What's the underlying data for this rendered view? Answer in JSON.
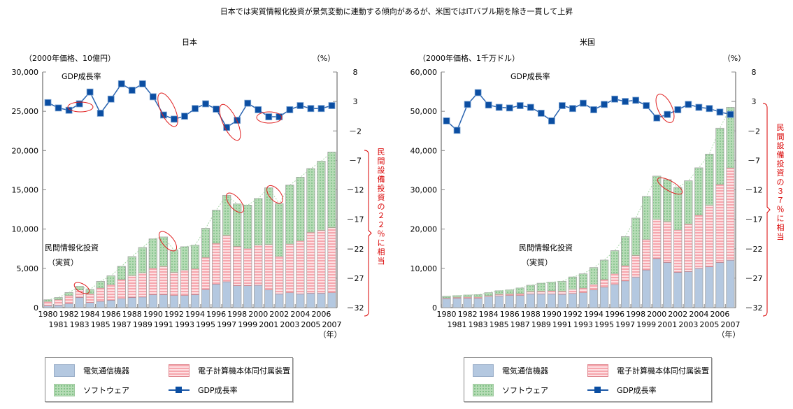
{
  "title": "日本では実質情報化投資が景気変動に連動する傾向があるが、米国ではITバブル期を除き一貫して上昇",
  "legend": {
    "items": [
      {
        "key": "telecom",
        "label": "電気通信機器",
        "color": "#b4c8e0"
      },
      {
        "key": "computer",
        "label": "電子計算機本体同付属装置",
        "color": "#f6a7ae"
      },
      {
        "key": "software",
        "label": "ソフトウェア",
        "color": "#b6dcb6"
      },
      {
        "key": "gdp",
        "label": "GDP成長率",
        "color": "#0b4ea2"
      }
    ]
  },
  "chart_data": [
    {
      "type": "bar",
      "subtype": "stacked-bar-with-line",
      "title": "日本",
      "left_unit": "（2000年価格、10億円）",
      "right_unit": "（%）",
      "year_unit": "（年）",
      "bar_label_line1": "民間情報化投資",
      "bar_label_line2": "（実質）",
      "line_label": "GDP成長率",
      "bracket_note": "民間設備投資の２２％に相当",
      "ylim": [
        0,
        30000
      ],
      "yticks": [
        0,
        5000,
        10000,
        15000,
        20000,
        25000,
        30000
      ],
      "ytick_labels": [
        "0",
        "5,000",
        "10,000",
        "15,000",
        "20,000",
        "25,000",
        "30,000"
      ],
      "y2lim": [
        -32,
        8
      ],
      "y2ticks": [
        8,
        3,
        -2,
        -7,
        -12,
        -17,
        -22,
        -27,
        -32
      ],
      "y2tick_labels": [
        "8",
        "3",
        "－2",
        "－7",
        "－12",
        "－17",
        "－22",
        "－27",
        "－32"
      ],
      "categories": [
        "1980",
        "1981",
        "1982",
        "1983",
        "1984",
        "1985",
        "1986",
        "1987",
        "1988",
        "1989",
        "1990",
        "1991",
        "1992",
        "1993",
        "1994",
        "1995",
        "1996",
        "1997",
        "1998",
        "1999",
        "2000",
        "2001",
        "2002",
        "2003",
        "2004",
        "2005",
        "2006",
        "2007"
      ],
      "series": [
        {
          "name": "電気通信機器",
          "values": [
            250,
            330,
            520,
            1300,
            650,
            800,
            950,
            1150,
            1300,
            1350,
            1650,
            1650,
            1550,
            1550,
            1650,
            2300,
            3000,
            3300,
            2800,
            2800,
            2850,
            2250,
            1750,
            1900,
            1750,
            1850,
            1850,
            1900
          ]
        },
        {
          "name": "電子計算機本体同付属装置",
          "values": [
            550,
            700,
            1050,
            950,
            1100,
            1700,
            2000,
            2450,
            2800,
            3100,
            3400,
            3600,
            2950,
            3250,
            3300,
            4100,
            5200,
            5900,
            5000,
            4750,
            5150,
            5800,
            4800,
            6200,
            6750,
            7750,
            8000,
            8300
          ]
        },
        {
          "name": "ソフトウェア",
          "values": [
            200,
            250,
            350,
            450,
            550,
            850,
            1100,
            1650,
            2400,
            3200,
            3700,
            3750,
            2800,
            2950,
            3000,
            3700,
            4200,
            5100,
            5400,
            5500,
            5900,
            7200,
            6700,
            7500,
            8100,
            8100,
            8800,
            9600
          ]
        },
        {
          "name": "GDP成長率",
          "values": [
            2.8,
            1.9,
            1.5,
            2.6,
            4.6,
            1.0,
            3.4,
            6.0,
            4.9,
            6.0,
            3.8,
            0.7,
            0.0,
            0.5,
            1.8,
            2.6,
            1.7,
            -1.4,
            -0.2,
            2.7,
            1.6,
            0.4,
            0.4,
            1.6,
            2.3,
            1.8,
            1.8,
            2.3
          ]
        }
      ],
      "highlights": [
        "1982-1983 GDP",
        "1991-1992 GDP",
        "1997-1998 GDP",
        "2001-2002 GDP",
        "1983-1984 投資",
        "1991-1992 投資",
        "1997-1998 投資",
        "2001-2002 投資"
      ]
    },
    {
      "type": "bar",
      "subtype": "stacked-bar-with-line",
      "title": "米国",
      "left_unit": "（2000年価格、1千万ドル）",
      "right_unit": "（%）",
      "year_unit": "（年）",
      "bar_label_line1": "民間情報化投資",
      "bar_label_line2": "（実質）",
      "line_label": "GDP成長率",
      "bracket_note": "民間設備投資の３７％に相当",
      "ylim": [
        0,
        60000
      ],
      "yticks": [
        0,
        10000,
        20000,
        30000,
        40000,
        50000,
        60000
      ],
      "ytick_labels": [
        "0",
        "10,000",
        "20,000",
        "30,000",
        "40,000",
        "50,000",
        "60,000"
      ],
      "y2lim": [
        -32,
        8
      ],
      "y2ticks": [
        8,
        3,
        -2,
        -7,
        -12,
        -17,
        -22,
        -27,
        -32
      ],
      "y2tick_labels": [
        "8",
        "3",
        "－2",
        "－7",
        "－12",
        "－17",
        "－22",
        "－27",
        "－32"
      ],
      "categories": [
        "1980",
        "1981",
        "1982",
        "1983",
        "1984",
        "1985",
        "1986",
        "1987",
        "1988",
        "1989",
        "1990",
        "1991",
        "1992",
        "1993",
        "1994",
        "1995",
        "1996",
        "1997",
        "1998",
        "1999",
        "2000",
        "2001",
        "2002",
        "2003",
        "2004",
        "2005",
        "2006",
        "2007"
      ],
      "series": [
        {
          "name": "電気通信機器",
          "values": [
            2300,
            2400,
            2400,
            2400,
            2800,
            3000,
            3100,
            3100,
            3500,
            3500,
            3500,
            3400,
            3600,
            3800,
            4500,
            5200,
            5900,
            6800,
            7800,
            9600,
            12500,
            11500,
            9000,
            9200,
            10000,
            10400,
            11500,
            12100
          ]
        },
        {
          "name": "電子計算機本体同付属装置",
          "values": [
            200,
            250,
            300,
            300,
            300,
            400,
            400,
            500,
            600,
            700,
            800,
            800,
            1100,
            1200,
            1500,
            2000,
            2800,
            3900,
            5500,
            7800,
            10000,
            10400,
            10800,
            12100,
            13600,
            15700,
            19900,
            23500
          ]
        },
        {
          "name": "ソフトウェア",
          "values": [
            400,
            400,
            500,
            600,
            700,
            900,
            1000,
            1400,
            1600,
            2000,
            2200,
            2500,
            3100,
            3600,
            4200,
            4900,
            5800,
            7400,
            9500,
            10900,
            11000,
            10700,
            10800,
            11000,
            12000,
            13000,
            14300,
            15400
          ]
        },
        {
          "name": "GDP成長率",
          "values": [
            -0.3,
            -1.9,
            2.5,
            4.5,
            2.4,
            2.0,
            1.9,
            2.3,
            2.0,
            1.0,
            -0.3,
            2.3,
            1.8,
            2.7,
            1.6,
            2.5,
            3.4,
            3.0,
            3.2,
            2.3,
            0.2,
            0.8,
            1.6,
            2.5,
            2.0,
            1.8,
            1.2,
            0.8
          ]
        }
      ],
      "highlights": [
        "2000-2001 GDP",
        "2000-2002 投資"
      ]
    }
  ]
}
